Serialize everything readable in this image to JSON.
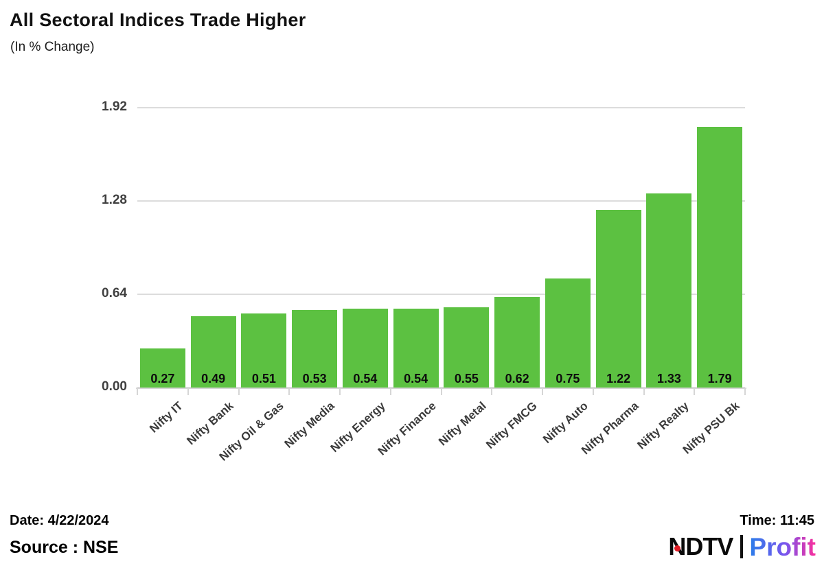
{
  "header": {
    "title": "All Sectoral Indices Trade Higher",
    "subtitle": "(In % Change)"
  },
  "chart_data": {
    "type": "bar",
    "title": "All Sectoral Indices Trade Higher",
    "subtitle": "(In % Change)",
    "categories": [
      "Nifty IT",
      "Nifty Bank",
      "Nifty Oil & Gas",
      "Nifty Media",
      "Nifty Energy",
      "Nifty Finance",
      "Nifty Metal",
      "Nifty FMCG",
      "Nifty Auto",
      "Nifty Pharma",
      "Nifty Realty",
      "Nifty PSU Bk"
    ],
    "values": [
      0.27,
      0.49,
      0.51,
      0.53,
      0.54,
      0.54,
      0.55,
      0.62,
      0.75,
      1.22,
      1.33,
      1.79
    ],
    "xlabel": "",
    "ylabel": "",
    "ylim": [
      0,
      1.92
    ],
    "yticks": [
      0,
      0.64,
      1.28,
      1.92
    ],
    "grid": true,
    "legend": false,
    "bar_color": "#5cc141",
    "gridline_color": "#dcdcdc",
    "value_label_color": "#0d0d0d"
  },
  "footer": {
    "date": "Date: 4/22/2024",
    "source": "Source : NSE",
    "time": "Time: 11:45",
    "logo": {
      "ndtv": "NDTV",
      "profit": "Profit",
      "dot_color": "#e01b24",
      "profit_gradient": [
        "#2b7de9",
        "#7a55ee",
        "#fb2e9b"
      ]
    }
  }
}
